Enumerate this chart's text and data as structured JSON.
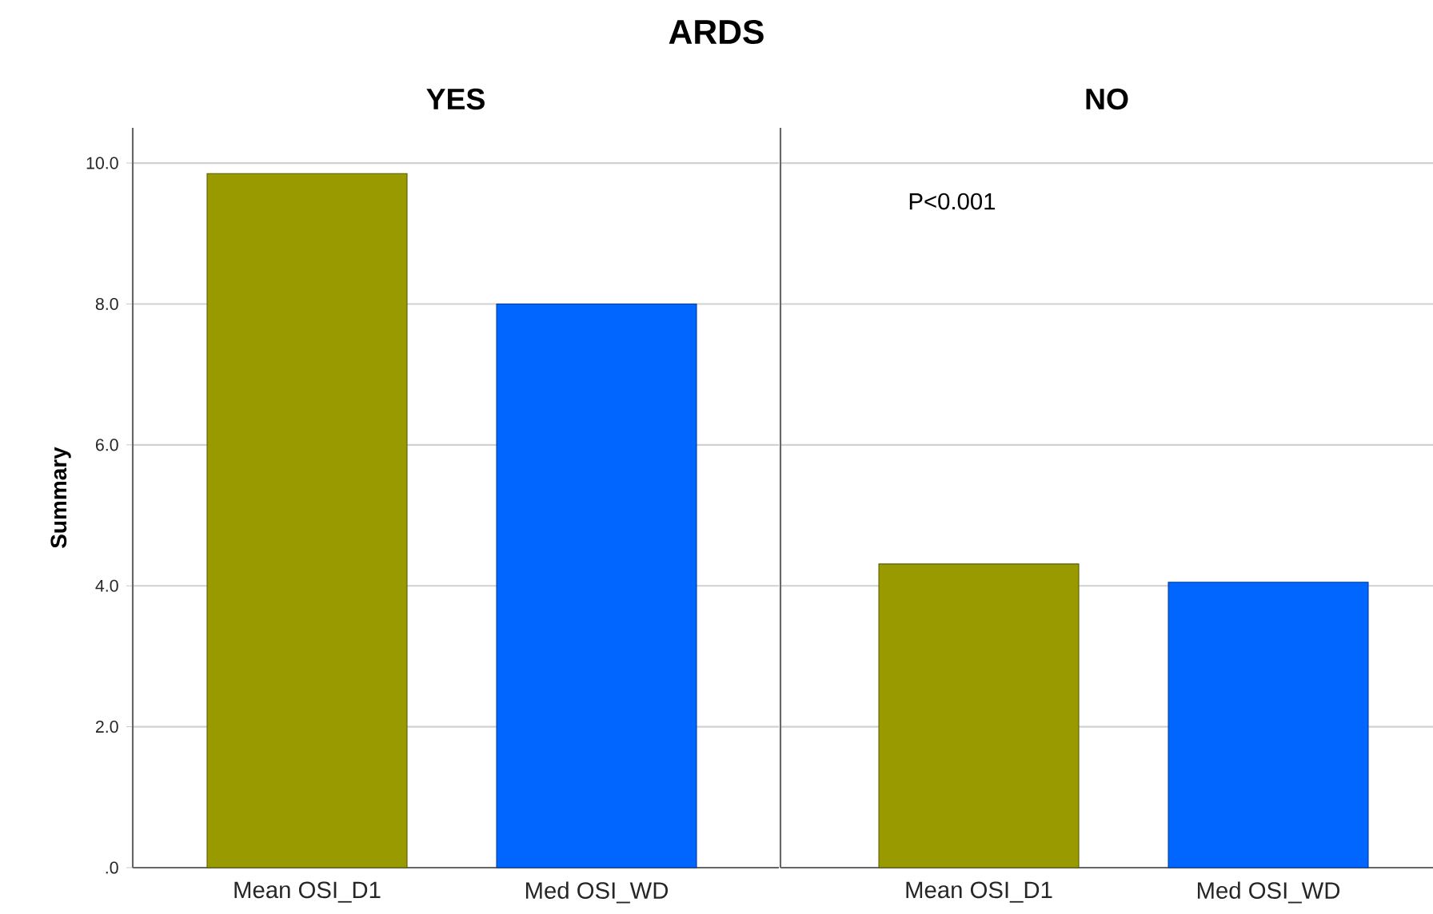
{
  "chart_data": [
    {
      "type": "bar",
      "title": "ARDS",
      "subtitle": "YES",
      "ylabel": "Summary",
      "categories": [
        "Mean OSI_D1",
        "Med OSI_WD"
      ],
      "values": [
        9.85,
        8.0
      ],
      "colors": [
        "#999900",
        "#0066ff"
      ],
      "ylim": [
        0,
        10.5
      ],
      "yticks": [
        {
          "value": 0,
          "label": ".0"
        },
        {
          "value": 2,
          "label": "2.0"
        },
        {
          "value": 4,
          "label": "4.0"
        },
        {
          "value": 6,
          "label": "6.0"
        },
        {
          "value": 8,
          "label": "8.0"
        },
        {
          "value": 10,
          "label": "10.0"
        }
      ],
      "grid": "y"
    },
    {
      "type": "bar",
      "subtitle": "NO",
      "categories": [
        "Mean OSI_D1",
        "Med OSI_WD"
      ],
      "values": [
        4.31,
        4.05
      ],
      "colors": [
        "#999900",
        "#0066ff"
      ],
      "ylim": [
        0,
        10.5
      ],
      "yticks": [
        0,
        2,
        4,
        6,
        8,
        10
      ],
      "tick_labels": "x",
      "grid": "y",
      "annotations": [
        "P<0.001"
      ]
    }
  ]
}
